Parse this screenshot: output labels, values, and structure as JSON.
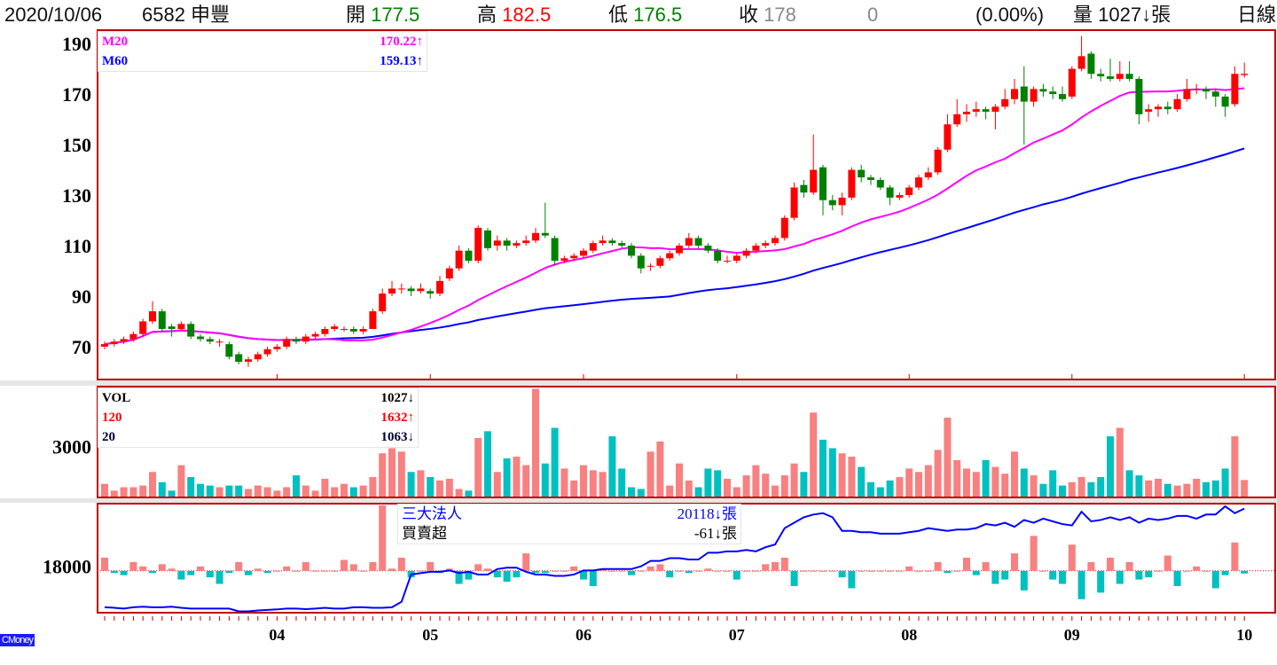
{
  "header": {
    "date": "2020/10/06",
    "stock": "6582 申豐",
    "open_label": "開",
    "open": "177.5",
    "high_label": "高",
    "high": "182.5",
    "low_label": "低",
    "low": "176.5",
    "close_label": "收",
    "close": "178",
    "change": "0",
    "change_pct": "(0.00%)",
    "volume_label": "量",
    "volume": "1027↓張",
    "period": "日線"
  },
  "price_legend": {
    "m20_label": "M20",
    "m20_value": "170.22↑",
    "m60_label": "M60",
    "m60_value": "159.13↑"
  },
  "volume_legend": {
    "vol_label": "VOL",
    "vol_value": "1027↓",
    "ma120_label": "120",
    "ma120_value": "1632↑",
    "ma20_label": "20",
    "ma20_value": "1063↓"
  },
  "inst_legend": {
    "title": "三大法人",
    "title_value": "20118↓張",
    "net_label": "買賣超",
    "net_value": "-61↓張"
  },
  "logo": "CMoney",
  "colors": {
    "up": "#ff0000",
    "down": "#008000",
    "vol_up": "#f88080",
    "vol_down": "#00c0c0",
    "m20": "#ff00ff",
    "m60": "#0000ff",
    "frame": "#c00000"
  },
  "chart_data": {
    "type": "candlestick",
    "title": "6582 申豐 日線",
    "price_ylim": [
      57,
      195.3
    ],
    "price_ticks": [
      "70",
      "90",
      "110",
      "130",
      "150",
      "170",
      "190"
    ],
    "volume_ylim": [
      0,
      6530
    ],
    "volume_ticks": [
      "3000"
    ],
    "net_ylim": [
      -960,
      1540
    ],
    "holding_ylim": [
      16300,
      20300
    ],
    "holding_ticks": [
      "18000"
    ],
    "x_ticks": [
      {
        "label": "04",
        "index": 18
      },
      {
        "label": "05",
        "index": 34
      },
      {
        "label": "06",
        "index": 50
      },
      {
        "label": "07",
        "index": 66
      },
      {
        "label": "08",
        "index": 84
      },
      {
        "label": "09",
        "index": 101
      },
      {
        "label": "10",
        "index": 119
      }
    ],
    "ohlc": [
      [
        70,
        72,
        69,
        71
      ],
      [
        71,
        73,
        70,
        72
      ],
      [
        72,
        74,
        71,
        73
      ],
      [
        73,
        76,
        72,
        75
      ],
      [
        75,
        81,
        74,
        80
      ],
      [
        80,
        88,
        79,
        84
      ],
      [
        84,
        85,
        76,
        77
      ],
      [
        78,
        79,
        74,
        77
      ],
      [
        77,
        80,
        76,
        79
      ],
      [
        79,
        80,
        73,
        74
      ],
      [
        74,
        75,
        72,
        73
      ],
      [
        73,
        74,
        71,
        72
      ],
      [
        72,
        73,
        70,
        72
      ],
      [
        71,
        72,
        65,
        66
      ],
      [
        67,
        68,
        63,
        64
      ],
      [
        64,
        66,
        62,
        65
      ],
      [
        65,
        68,
        64,
        67
      ],
      [
        67,
        70,
        66,
        69
      ],
      [
        69,
        71,
        68,
        70
      ],
      [
        70,
        74,
        69,
        73
      ],
      [
        73,
        74,
        71,
        72
      ],
      [
        72,
        75,
        71,
        74
      ],
      [
        74,
        76,
        73,
        75
      ],
      [
        75,
        78,
        74,
        77
      ],
      [
        77,
        79,
        76,
        78
      ],
      [
        77,
        78,
        76,
        77
      ],
      [
        77,
        78,
        75,
        76
      ],
      [
        76,
        78,
        75,
        77
      ],
      [
        77,
        85,
        77,
        84
      ],
      [
        84,
        93,
        83,
        91
      ],
      [
        91,
        96,
        90,
        93
      ],
      [
        93,
        95,
        91,
        93
      ],
      [
        93,
        94,
        90,
        92
      ],
      [
        92,
        95,
        91,
        93
      ],
      [
        92,
        93,
        89,
        91
      ],
      [
        91,
        98,
        90,
        96
      ],
      [
        97,
        102,
        96,
        101
      ],
      [
        101,
        110,
        100,
        108
      ],
      [
        108,
        109,
        103,
        104
      ],
      [
        104,
        118,
        103,
        117
      ],
      [
        116,
        117,
        108,
        109
      ],
      [
        110,
        114,
        108,
        112
      ],
      [
        112,
        113,
        108,
        110
      ],
      [
        110,
        112,
        109,
        111
      ],
      [
        111,
        114,
        110,
        112
      ],
      [
        112,
        117,
        111,
        115
      ],
      [
        115,
        127,
        113,
        114
      ],
      [
        113,
        114,
        102,
        104
      ],
      [
        104,
        106,
        103,
        105
      ],
      [
        105,
        107,
        104,
        106
      ],
      [
        106,
        109,
        105,
        108
      ],
      [
        108,
        112,
        107,
        111
      ],
      [
        111,
        114,
        110,
        112
      ],
      [
        112,
        113,
        110,
        111
      ],
      [
        111,
        112,
        109,
        110
      ],
      [
        110,
        111,
        105,
        106
      ],
      [
        106,
        107,
        99,
        101
      ],
      [
        102,
        103,
        100,
        102
      ],
      [
        102,
        106,
        101,
        105
      ],
      [
        105,
        108,
        104,
        107
      ],
      [
        107,
        111,
        106,
        110
      ],
      [
        110,
        115,
        109,
        113
      ],
      [
        113,
        114,
        109,
        110
      ],
      [
        110,
        111,
        107,
        108
      ],
      [
        108,
        109,
        103,
        104
      ],
      [
        104,
        106,
        103,
        104
      ],
      [
        104,
        107,
        103,
        106
      ],
      [
        106,
        109,
        105,
        108
      ],
      [
        108,
        111,
        107,
        110
      ],
      [
        110,
        112,
        109,
        111
      ],
      [
        111,
        114,
        110,
        113
      ],
      [
        113,
        122,
        112,
        121
      ],
      [
        121,
        135,
        120,
        133
      ],
      [
        134,
        136,
        129,
        131
      ],
      [
        131,
        154,
        130,
        140
      ],
      [
        141,
        142,
        122,
        128
      ],
      [
        128,
        130,
        124,
        126
      ],
      [
        126,
        131,
        122,
        129
      ],
      [
        129,
        141,
        128,
        140
      ],
      [
        140,
        142,
        135,
        137
      ],
      [
        137,
        138,
        134,
        136
      ],
      [
        136,
        137,
        132,
        133
      ],
      [
        133,
        134,
        126,
        129
      ],
      [
        129,
        131,
        128,
        130
      ],
      [
        130,
        134,
        129,
        133
      ],
      [
        133,
        138,
        132,
        137
      ],
      [
        137,
        141,
        136,
        139
      ],
      [
        139,
        149,
        138,
        148
      ],
      [
        148,
        162,
        147,
        158
      ],
      [
        158,
        168,
        157,
        162
      ],
      [
        162,
        166,
        159,
        163
      ],
      [
        163,
        167,
        161,
        164
      ],
      [
        164,
        165,
        160,
        163
      ],
      [
        163,
        166,
        156,
        165
      ],
      [
        165,
        172,
        164,
        168
      ],
      [
        168,
        176,
        166,
        172
      ],
      [
        173,
        181,
        150,
        167
      ],
      [
        167,
        173,
        165,
        172
      ],
      [
        172,
        174,
        169,
        171
      ],
      [
        171,
        173,
        168,
        170
      ],
      [
        170,
        173,
        167,
        168
      ],
      [
        169,
        181,
        168,
        180
      ],
      [
        180,
        193,
        179,
        185
      ],
      [
        186,
        187,
        176,
        178
      ],
      [
        178,
        180,
        175,
        177
      ],
      [
        177,
        184,
        175,
        176
      ],
      [
        176,
        183,
        175,
        178
      ],
      [
        178,
        183,
        175,
        176
      ],
      [
        176,
        177,
        158,
        162
      ],
      [
        163,
        166,
        159,
        164
      ],
      [
        164,
        166,
        161,
        165
      ],
      [
        165,
        167,
        162,
        164
      ],
      [
        164,
        170,
        163,
        168
      ],
      [
        168,
        176,
        167,
        172
      ],
      [
        172,
        174,
        170,
        172
      ],
      [
        172,
        173,
        168,
        171
      ],
      [
        171,
        172,
        165,
        169
      ],
      [
        169,
        170,
        161,
        165
      ],
      [
        166,
        181,
        165,
        178
      ],
      [
        177.5,
        182.5,
        176.5,
        178
      ]
    ],
    "volume": [
      800,
      400,
      600,
      600,
      700,
      1500,
      900,
      400,
      1900,
      1200,
      800,
      700,
      600,
      700,
      700,
      500,
      700,
      600,
      400,
      600,
      1300,
      700,
      400,
      1100,
      600,
      800,
      600,
      700,
      1200,
      2600,
      2900,
      2700,
      1500,
      1600,
      1200,
      1000,
      1100,
      500,
      400,
      3500,
      3900,
      1500,
      2300,
      2400,
      1900,
      6400,
      2000,
      4100,
      1700,
      1000,
      1900,
      1600,
      1500,
      3600,
      1700,
      600,
      500,
      2700,
      3300,
      700,
      2000,
      1000,
      600,
      1700,
      1600,
      1100,
      600,
      1300,
      1900,
      1400,
      700,
      1300,
      2000,
      1500,
      5000,
      3400,
      2900,
      2600,
      2400,
      1800,
      900,
      600,
      1000,
      1200,
      1700,
      1500,
      1900,
      2800,
      4700,
      2200,
      1700,
      1500,
      2200,
      1800,
      1400,
      2700,
      1700,
      1300,
      800,
      1600,
      700,
      900,
      1200,
      900,
      1200,
      3600,
      4100,
      1600,
      1300,
      1000,
      1100,
      800,
      700,
      800,
      1100,
      900,
      1000,
      1700,
      3600,
      1027
    ],
    "net_buy": [
      300,
      -50,
      -100,
      200,
      100,
      -50,
      150,
      50,
      -200,
      -100,
      100,
      -150,
      -300,
      -50,
      200,
      -100,
      50,
      -50,
      0,
      100,
      0,
      200,
      0,
      0,
      0,
      250,
      150,
      0,
      200,
      1500,
      50,
      300,
      -150,
      0,
      200,
      -50,
      50,
      -300,
      -200,
      150,
      50,
      -150,
      -250,
      -150,
      400,
      -50,
      -50,
      0,
      0,
      100,
      -200,
      -350,
      50,
      0,
      0,
      -100,
      0,
      100,
      150,
      -150,
      0,
      -50,
      0,
      50,
      0,
      0,
      -200,
      0,
      0,
      150,
      200,
      300,
      -350,
      0,
      0,
      0,
      0,
      -150,
      -400,
      0,
      0,
      0,
      0,
      0,
      100,
      0,
      0,
      200,
      -50,
      0,
      300,
      -100,
      200,
      -300,
      -200,
      400,
      -450,
      800,
      0,
      -200,
      -300,
      600,
      -650,
      200,
      -500,
      300,
      -300,
      200,
      -200,
      -150,
      0,
      350,
      -350,
      0,
      100,
      0,
      -400,
      -100,
      650,
      -61
    ],
    "holding": [
      16500,
      16480,
      16450,
      16500,
      16520,
      16500,
      16500,
      16520,
      16480,
      16450,
      16450,
      16450,
      16450,
      16450,
      16350,
      16350,
      16380,
      16400,
      16420,
      16450,
      16450,
      16430,
      16450,
      16480,
      16450,
      16450,
      16500,
      16500,
      16480,
      16480,
      16500,
      16700,
      17700,
      17750,
      17800,
      17800,
      17850,
      17750,
      17800,
      17700,
      17700,
      17900,
      17950,
      17950,
      17800,
      17700,
      17700,
      17650,
      17650,
      17700,
      17850,
      17850,
      17900,
      17900,
      17900,
      17900,
      18000,
      18200,
      18200,
      18300,
      18300,
      18250,
      18250,
      18500,
      18500,
      18550,
      18550,
      18600,
      18550,
      18700,
      18800,
      19400,
      19600,
      19800,
      19900,
      19950,
      19800,
      19300,
      19300,
      19250,
      19250,
      19200,
      19200,
      19200,
      19250,
      19300,
      19400,
      19350,
      19300,
      19350,
      19350,
      19400,
      19550,
      19500,
      19600,
      19450,
      19700,
      19600,
      19750,
      19650,
      19550,
      19500,
      20000,
      19650,
      19700,
      19800,
      19700,
      19800,
      19600,
      19750,
      19700,
      19750,
      19850,
      19850,
      19750,
      19900,
      19900,
      20200,
      19950,
      20118
    ]
  }
}
